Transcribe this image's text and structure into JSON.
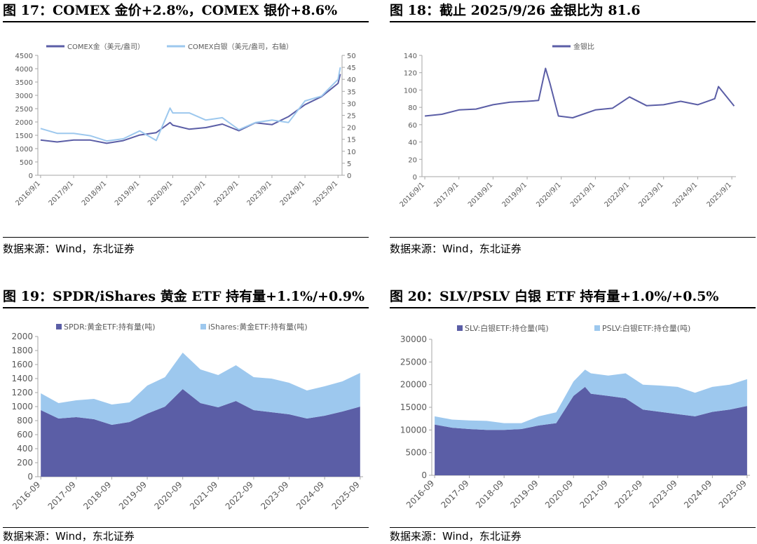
{
  "panels": [
    {
      "title": "图 17：COMEX 金价+2.8%，COMEX 银价+8.6%",
      "source": "数据来源：Wind，东北证券"
    },
    {
      "title": "图 18：截止 2025/9/26 金银比为 81.6",
      "source": "数据来源：Wind，东北证券"
    },
    {
      "title": "图 19：SPDR/iShares 黄金 ETF 持有量+1.1%/+0.9%",
      "source": "数据来源：Wind，东北证券"
    },
    {
      "title": "图 20：SLV/PSLV 白银 ETF 持有量+1.0%/+0.5%",
      "source": "数据来源：Wind，东北证券"
    }
  ],
  "colors": {
    "dark": "#5B5EA6",
    "light": "#9DC8EE"
  },
  "chart_data": [
    {
      "type": "line",
      "x": [
        "2016/9/1",
        "2017/3/1",
        "2017/9/1",
        "2018/3/1",
        "2018/9/1",
        "2019/3/1",
        "2019/9/1",
        "2020/3/1",
        "2020/8/1",
        "2020/9/1",
        "2021/3/1",
        "2021/9/1",
        "2022/3/1",
        "2022/9/1",
        "2023/3/1",
        "2023/9/1",
        "2024/3/1",
        "2024/9/1",
        "2025/3/1",
        "2025/9/1",
        "2025/9/26"
      ],
      "xticks": [
        "2016/9/1",
        "2017/9/1",
        "2018/9/1",
        "2019/9/1",
        "2020/9/1",
        "2021/9/1",
        "2022/9/1",
        "2023/9/1",
        "2024/9/1",
        "2025/9/1"
      ],
      "series": [
        {
          "name": "COMEX金（美元/盎司）",
          "axis": "left",
          "color": "dark",
          "values": [
            1320,
            1250,
            1320,
            1320,
            1200,
            1300,
            1510,
            1600,
            1980,
            1880,
            1730,
            1790,
            1920,
            1670,
            1970,
            1900,
            2200,
            2650,
            2950,
            3450,
            3800
          ]
        },
        {
          "name": "COMEX白银（美元/盎司，右轴）",
          "axis": "right",
          "color": "light",
          "values": [
            19.5,
            17.5,
            17.5,
            16.5,
            14.3,
            15.2,
            18.5,
            14.5,
            28,
            26,
            26,
            23,
            24,
            19,
            22,
            23,
            22,
            31,
            33,
            40,
            45
          ]
        }
      ],
      "ylim_left": [
        0,
        4500
      ],
      "yticks_left": [
        0,
        500,
        1000,
        1500,
        2000,
        2500,
        3000,
        3500,
        4000,
        4500
      ],
      "ylim_right": [
        0,
        50
      ],
      "yticks_right": [
        0,
        5,
        10,
        15,
        20,
        25,
        30,
        35,
        40,
        45,
        50
      ],
      "legend": "top"
    },
    {
      "type": "line",
      "x": [
        "2016/9/1",
        "2017/3/1",
        "2017/9/1",
        "2018/3/1",
        "2018/9/1",
        "2019/3/1",
        "2019/9/1",
        "2020/1/1",
        "2020/3/15",
        "2020/5/1",
        "2020/8/1",
        "2021/1/1",
        "2021/9/1",
        "2022/3/1",
        "2022/9/1",
        "2023/3/1",
        "2023/9/1",
        "2024/3/1",
        "2024/9/1",
        "2025/3/1",
        "2025/4/10",
        "2025/9/26"
      ],
      "xticks": [
        "2016/9/1",
        "2017/9/1",
        "2018/9/1",
        "2019/9/1",
        "2020/9/1",
        "2021/9/1",
        "2022/9/1",
        "2023/9/1",
        "2024/9/1",
        "2025/9/1"
      ],
      "series": [
        {
          "name": "金银比",
          "color": "dark",
          "values": [
            70,
            72,
            77,
            78,
            83,
            86,
            87,
            88,
            125,
            108,
            70,
            68,
            77,
            79,
            92,
            82,
            83,
            87,
            83,
            90,
            104,
            81.6
          ]
        }
      ],
      "ylim": [
        0,
        140
      ],
      "yticks": [
        0,
        20,
        40,
        60,
        80,
        100,
        120,
        140
      ],
      "legend": "top"
    },
    {
      "type": "area",
      "x": [
        "2016-09",
        "2017-03",
        "2017-09",
        "2018-03",
        "2018-09",
        "2019-03",
        "2019-09",
        "2020-03",
        "2020-09",
        "2021-03",
        "2021-09",
        "2022-03",
        "2022-09",
        "2023-03",
        "2023-09",
        "2024-03",
        "2024-09",
        "2025-03",
        "2025-09"
      ],
      "xticks": [
        "2016-09",
        "2017-09",
        "2018-09",
        "2019-09",
        "2020-09",
        "2021-09",
        "2022-09",
        "2023-09",
        "2024-09",
        "2025-09"
      ],
      "series": [
        {
          "name": "SPDR:黄金ETF:持有量(吨)",
          "color": "dark",
          "values": [
            950,
            830,
            850,
            820,
            740,
            780,
            900,
            1000,
            1250,
            1050,
            990,
            1080,
            950,
            920,
            890,
            830,
            870,
            930,
            1000
          ]
        },
        {
          "name": "iShares:黄金ETF:持有量(吨)",
          "color": "light",
          "values": [
            240,
            220,
            240,
            290,
            290,
            280,
            400,
            420,
            520,
            480,
            460,
            510,
            470,
            480,
            450,
            400,
            420,
            430,
            480
          ]
        }
      ],
      "stacked": true,
      "ylim": [
        0,
        2000
      ],
      "yticks": [
        0,
        200,
        400,
        600,
        800,
        1000,
        1200,
        1400,
        1600,
        1800,
        2000
      ],
      "legend": "top"
    },
    {
      "type": "area",
      "x": [
        "2016-09",
        "2017-03",
        "2017-09",
        "2018-03",
        "2018-09",
        "2019-03",
        "2019-09",
        "2020-03",
        "2020-09",
        "2021-01",
        "2021-03",
        "2021-09",
        "2022-03",
        "2022-09",
        "2023-03",
        "2023-09",
        "2024-03",
        "2024-09",
        "2025-03",
        "2025-09"
      ],
      "xticks": [
        "2016-09",
        "2017-09",
        "2018-09",
        "2019-09",
        "2020-09",
        "2021-09",
        "2022-09",
        "2023-09",
        "2024-09",
        "2025-09"
      ],
      "series": [
        {
          "name": "SLV:白银ETF:持仓量(吨)",
          "color": "dark",
          "values": [
            11200,
            10500,
            10200,
            10000,
            10000,
            10200,
            11000,
            11500,
            17500,
            19500,
            18000,
            17500,
            17000,
            14500,
            14000,
            13500,
            13000,
            14000,
            14500,
            15300
          ]
        },
        {
          "name": "PSLV:白银ETF:持仓量(吨)",
          "color": "light",
          "values": [
            1800,
            1800,
            1900,
            2000,
            1500,
            1300,
            2000,
            2400,
            3200,
            3800,
            4500,
            4500,
            5500,
            5500,
            5800,
            6000,
            5200,
            5500,
            5500,
            5900
          ]
        }
      ],
      "stacked": true,
      "ylim": [
        0,
        30000
      ],
      "yticks": [
        0,
        5000,
        10000,
        15000,
        20000,
        25000,
        30000
      ],
      "legend": "top"
    }
  ]
}
